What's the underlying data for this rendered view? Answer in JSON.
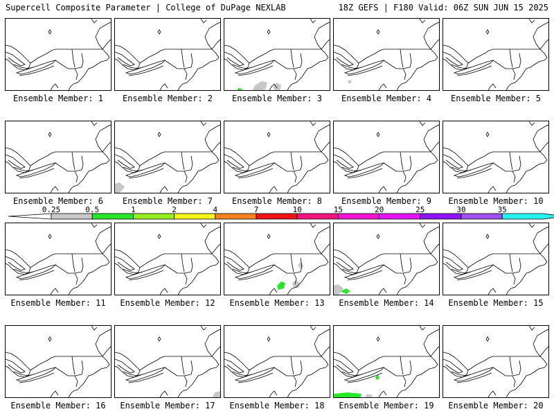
{
  "header": {
    "left": "Supercell Composite Parameter | College of DuPage NEXLAB",
    "right": "18Z GEFS | F180 Valid: 06Z SUN JUN 15 2025"
  },
  "panels": [
    {
      "label": "Ensemble Member: 1",
      "blobs": []
    },
    {
      "label": "Ensemble Member: 2",
      "blobs": []
    },
    {
      "label": "Ensemble Member: 3",
      "blobs": [
        "gray-sw",
        "green-sw"
      ]
    },
    {
      "label": "Ensemble Member: 4",
      "blobs": [
        "gray-dot"
      ]
    },
    {
      "label": "Ensemble Member: 5",
      "blobs": []
    },
    {
      "label": "Ensemble Member: 6",
      "blobs": []
    },
    {
      "label": "Ensemble Member: 7",
      "blobs": [
        "gray-corner"
      ]
    },
    {
      "label": "Ensemble Member: 8",
      "blobs": []
    },
    {
      "label": "Ensemble Member: 9",
      "blobs": []
    },
    {
      "label": "Ensemble Member: 10",
      "blobs": []
    },
    {
      "label": "Ensemble Member: 11",
      "blobs": []
    },
    {
      "label": "Ensemble Member: 12",
      "blobs": []
    },
    {
      "label": "Ensemble Member: 13",
      "blobs": [
        "gray-east",
        "green-coast"
      ]
    },
    {
      "label": "Ensemble Member: 14",
      "blobs": [
        "gray-corner",
        "green-corner"
      ]
    },
    {
      "label": "Ensemble Member: 15",
      "blobs": []
    },
    {
      "label": "Ensemble Member: 16",
      "blobs": []
    },
    {
      "label": "Ensemble Member: 17",
      "blobs": [
        "gray-se"
      ]
    },
    {
      "label": "Ensemble Member: 18",
      "blobs": []
    },
    {
      "label": "Ensemble Member: 19",
      "blobs": [
        "green-bottom",
        "green-coast-small",
        "gray-bottom"
      ]
    },
    {
      "label": "Ensemble Member: 20",
      "blobs": []
    }
  ],
  "colorbar": {
    "ticks": [
      "0.25",
      "0.5",
      "1",
      "2",
      "4",
      "7",
      "10",
      "15",
      "20",
      "25",
      "30",
      "35"
    ],
    "colors": [
      "#c8c8c8",
      "#28e628",
      "#96f01e",
      "#f5f51e",
      "#f5821e",
      "#f01414",
      "#f0147d",
      "#f014d2",
      "#e614f5",
      "#8c14f5",
      "#a050f0",
      "#28f0f0"
    ]
  },
  "colors": {
    "gray": "#c8c8c8",
    "green": "#28e628",
    "outline": "#000000"
  }
}
